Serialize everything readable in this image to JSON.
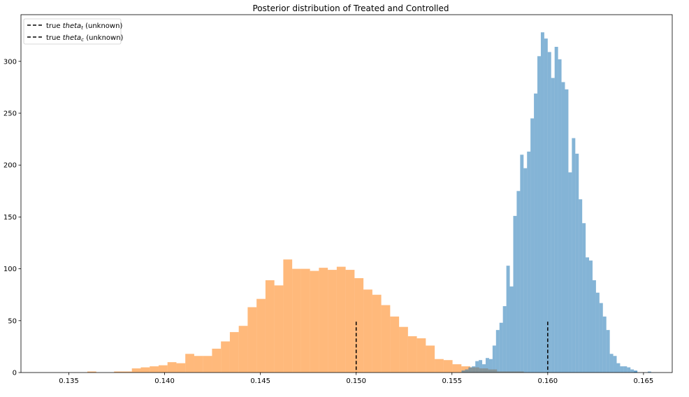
{
  "chart_data": {
    "type": "histogram",
    "title": "Posterior distribution of Treated and Controlled",
    "xlabel": "",
    "ylabel": "",
    "xlim": [
      0.1325,
      0.1665
    ],
    "ylim": [
      0,
      345
    ],
    "x_ticks": [
      0.135,
      0.14,
      0.145,
      0.15,
      0.155,
      0.16,
      0.165
    ],
    "x_tick_labels": [
      "0.135",
      "0.140",
      "0.145",
      "0.150",
      "0.155",
      "0.160",
      "0.165"
    ],
    "y_ticks": [
      0,
      50,
      100,
      150,
      200,
      250,
      300
    ],
    "y_tick_labels": [
      "0",
      "50",
      "100",
      "150",
      "200",
      "250",
      "300"
    ],
    "grid": false,
    "legend_position": "top-left",
    "colors": {
      "series_a": "#1f77b4",
      "series_b": "#ff7f0e",
      "vline": "#000000"
    },
    "bar_opacity": 0.55,
    "series": [
      {
        "name": "",
        "color": "#1f77b4",
        "bin_start": 0.1555,
        "bin_width": 0.00018,
        "counts": [
          2,
          3,
          5,
          6,
          11,
          12,
          8,
          14,
          13,
          26,
          41,
          48,
          64,
          103,
          83,
          151,
          175,
          210,
          197,
          213,
          245,
          269,
          305,
          328,
          322,
          309,
          284,
          314,
          302,
          280,
          273,
          193,
          226,
          211,
          167,
          144,
          111,
          108,
          89,
          77,
          67,
          54,
          41,
          18,
          16,
          9,
          6,
          6,
          5,
          3,
          1,
          0,
          0,
          0,
          1,
          0,
          0,
          0,
          0,
          0,
          0,
          0,
          0,
          0,
          0,
          0,
          0,
          0,
          0,
          0,
          0,
          0,
          0,
          0,
          0,
          0,
          0,
          0,
          0,
          0,
          0,
          0,
          0,
          0,
          0,
          0,
          0,
          0,
          0,
          0,
          0,
          0,
          0,
          0,
          0,
          0,
          0,
          0,
          0,
          0,
          0,
          0,
          0,
          0,
          0,
          0,
          0,
          0,
          0,
          0,
          0,
          0,
          0,
          0,
          0,
          0,
          0,
          0,
          0,
          0,
          0,
          0,
          0,
          0,
          0,
          0,
          0,
          0,
          0,
          0,
          0,
          0,
          0,
          0,
          0,
          0,
          0,
          0,
          0,
          0,
          0,
          0,
          0,
          0,
          0,
          0,
          0,
          0,
          0,
          0,
          0,
          0,
          0,
          0,
          0,
          0,
          0,
          0,
          0,
          0,
          0,
          0,
          0,
          0,
          0,
          0,
          0,
          0,
          0,
          0,
          0,
          0,
          0,
          0,
          0,
          0,
          0,
          0,
          0,
          0,
          0,
          0,
          0,
          0,
          0,
          0,
          0,
          0,
          0,
          0,
          0,
          0,
          0,
          0,
          0,
          0,
          0
        ],
        "extra_bins": [
          [
            0.1645,
            2
          ]
        ]
      },
      {
        "name": "",
        "color": "#ff7f0e",
        "bin_start": 0.1355,
        "bin_width": 0.000465,
        "counts": [
          0,
          1,
          0,
          0,
          1,
          1,
          4,
          5,
          6,
          7,
          10,
          9,
          18,
          16,
          16,
          23,
          30,
          39,
          45,
          63,
          71,
          89,
          84,
          109,
          100,
          100,
          98,
          101,
          99,
          102,
          99,
          91,
          80,
          75,
          65,
          54,
          44,
          35,
          33,
          26,
          13,
          12,
          8,
          6,
          5,
          4,
          3,
          1,
          1,
          1
        ]
      }
    ],
    "vlines": [
      {
        "label": "true $theta_t$ (unknown)",
        "x": 0.15,
        "y_top": 49
      },
      {
        "label": "true $theta_c$ (unknown)",
        "x": 0.16,
        "y_top": 49
      }
    ]
  },
  "legend": {
    "items": [
      {
        "prefix": "true ",
        "italic": "theta",
        "sub": "t",
        "suffix": " (unknown)"
      },
      {
        "prefix": "true ",
        "italic": "theta",
        "sub": "c",
        "suffix": " (unknown)"
      }
    ]
  }
}
